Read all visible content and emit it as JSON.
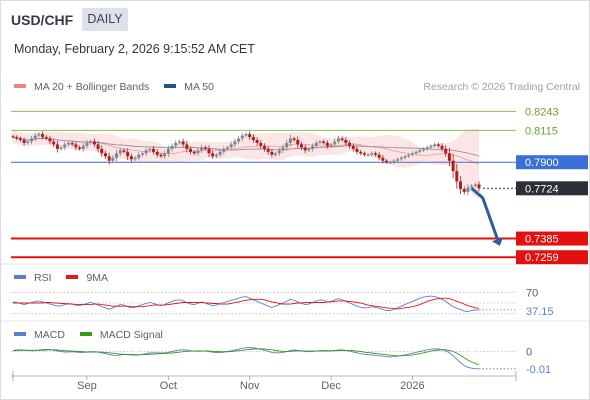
{
  "header": {
    "symbol": "USD/CHF",
    "timeframe": "DAILY",
    "datetime": "Monday, February 2, 2026 9:15:52 AM CET",
    "credit": "Research © 2026 Trading Central"
  },
  "legends": {
    "price": [
      {
        "label": "MA 20 + Bollinger Bands",
        "color": "#f4817c"
      },
      {
        "label": "MA 50",
        "color": "#2c4f86"
      }
    ],
    "rsi": [
      {
        "label": "RSI",
        "color": "#5b7fcf"
      },
      {
        "label": "9MA",
        "color": "#e01818"
      }
    ],
    "macd": [
      {
        "label": "MACD",
        "color": "#5b7fcf"
      },
      {
        "label": "MACD Signal",
        "color": "#3a9a1a"
      }
    ]
  },
  "colors": {
    "up_candle": "#7e8491",
    "down_candle": "#b01c1c",
    "resistance_green": "#8cc04a",
    "pivot_blue": "#3a6fd8",
    "support_red": "#e31010",
    "arrow_blue": "#2e5d9e",
    "bb_fill": "#fbdcdc",
    "current_label_bg": "#2b2f36"
  },
  "chart_data": [
    {
      "type": "candlestick",
      "title": "USD/CHF",
      "ylim": [
        0.722,
        0.834
      ],
      "x_ticks": [
        "Sep",
        "Oct",
        "Nov",
        "Dec",
        "2026"
      ],
      "num_bars": 127,
      "close": [
        0.807,
        0.806,
        0.805,
        0.803,
        0.804,
        0.806,
        0.808,
        0.809,
        0.807,
        0.806,
        0.804,
        0.802,
        0.799,
        0.8,
        0.802,
        0.803,
        0.802,
        0.8,
        0.799,
        0.801,
        0.803,
        0.804,
        0.802,
        0.799,
        0.796,
        0.794,
        0.791,
        0.793,
        0.796,
        0.798,
        0.797,
        0.794,
        0.792,
        0.793,
        0.795,
        0.796,
        0.798,
        0.799,
        0.797,
        0.795,
        0.794,
        0.796,
        0.799,
        0.801,
        0.803,
        0.804,
        0.802,
        0.799,
        0.797,
        0.796,
        0.798,
        0.8,
        0.799,
        0.796,
        0.794,
        0.795,
        0.797,
        0.799,
        0.8,
        0.802,
        0.804,
        0.806,
        0.808,
        0.809,
        0.807,
        0.805,
        0.803,
        0.801,
        0.799,
        0.797,
        0.795,
        0.796,
        0.798,
        0.8,
        0.803,
        0.806,
        0.805,
        0.802,
        0.8,
        0.798,
        0.799,
        0.801,
        0.803,
        0.804,
        0.803,
        0.801,
        0.802,
        0.804,
        0.806,
        0.805,
        0.803,
        0.801,
        0.799,
        0.797,
        0.796,
        0.795,
        0.795,
        0.796,
        0.795,
        0.793,
        0.791,
        0.79,
        0.79,
        0.791,
        0.792,
        0.793,
        0.794,
        0.795,
        0.796,
        0.797,
        0.798,
        0.799,
        0.8,
        0.801,
        0.802,
        0.801,
        0.799,
        0.796,
        0.791,
        0.784,
        0.777,
        0.772,
        0.77,
        0.773,
        0.774,
        0.775,
        0.7724
      ],
      "levels": [
        {
          "value": 0.8243,
          "label": "0.8243",
          "role": "resistance"
        },
        {
          "value": 0.8115,
          "label": "0.8115",
          "role": "resistance"
        },
        {
          "value": 0.79,
          "label": "0.7900",
          "role": "pivot"
        },
        {
          "value": 0.7724,
          "label": "0.7724",
          "role": "last"
        },
        {
          "value": 0.7385,
          "label": "0.7385",
          "role": "support"
        },
        {
          "value": 0.7259,
          "label": "0.7259",
          "role": "support"
        }
      ],
      "forecast_arrow": [
        [
          124,
          0.7724
        ],
        [
          127,
          0.766
        ],
        [
          131,
          0.738
        ]
      ]
    },
    {
      "type": "line",
      "title": "RSI",
      "ylim": [
        20,
        80
      ],
      "ticks": [
        {
          "value": 70,
          "label": "70"
        }
      ],
      "last_value_label": "37.15",
      "series": [
        {
          "name": "RSI",
          "values": [
            52,
            51,
            49,
            47,
            49,
            51,
            53,
            54,
            52,
            50,
            48,
            46,
            44,
            45,
            47,
            49,
            48,
            46,
            45,
            47,
            49,
            51,
            49,
            46,
            43,
            41,
            38,
            41,
            44,
            47,
            46,
            43,
            41,
            42,
            45,
            47,
            49,
            51,
            49,
            47,
            45,
            47,
            50,
            53,
            55,
            56,
            54,
            51,
            48,
            47,
            49,
            52,
            50,
            47,
            45,
            46,
            49,
            51,
            53,
            55,
            57,
            59,
            61,
            62,
            59,
            56,
            53,
            50,
            47,
            44,
            42,
            44,
            47,
            50,
            53,
            57,
            55,
            52,
            49,
            47,
            48,
            51,
            54,
            56,
            55,
            52,
            53,
            56,
            58,
            56,
            53,
            50,
            47,
            44,
            42,
            41,
            41,
            43,
            42,
            40,
            38,
            36,
            36,
            38,
            41,
            44,
            47,
            50,
            53,
            56,
            59,
            61,
            62,
            63,
            62,
            60,
            57,
            53,
            48,
            43,
            40,
            38,
            35,
            34,
            36,
            37,
            37.15
          ]
        },
        {
          "name": "9MA",
          "values": [
            50,
            50,
            50,
            50,
            50,
            50,
            50,
            50,
            50,
            51,
            51,
            50,
            50,
            49,
            49,
            48,
            48,
            47,
            47,
            47,
            47,
            47,
            48,
            48,
            47,
            46,
            45,
            44,
            44,
            44,
            44,
            44,
            43,
            43,
            43,
            43,
            44,
            45,
            46,
            46,
            46,
            46,
            47,
            48,
            49,
            50,
            51,
            51,
            51,
            51,
            51,
            51,
            50,
            50,
            49,
            49,
            48,
            48,
            48,
            49,
            51,
            52,
            54,
            55,
            56,
            57,
            57,
            57,
            56,
            54,
            52,
            51,
            49,
            48,
            48,
            48,
            49,
            50,
            50,
            51,
            51,
            51,
            51,
            51,
            51,
            52,
            52,
            53,
            54,
            54,
            54,
            53,
            52,
            51,
            50,
            48,
            46,
            45,
            44,
            43,
            42,
            41,
            40,
            40,
            39,
            40,
            41,
            42,
            43,
            45,
            47,
            50,
            53,
            55,
            57,
            58,
            59,
            59,
            58,
            56,
            53,
            51,
            48,
            45,
            43,
            41,
            40
          ]
        }
      ]
    },
    {
      "type": "line",
      "title": "MACD",
      "ylim": [
        -0.011,
        0.004
      ],
      "ticks": [
        {
          "value": 0,
          "label": "0"
        }
      ],
      "last_value_label": "-0.01",
      "series": [
        {
          "name": "MACD",
          "values": [
            0.0005,
            0.0007,
            0.0008,
            0.0007,
            0.0005,
            0.0004,
            0.0005,
            0.0007,
            0.0009,
            0.001,
            0.0009,
            0.0006,
            0.0003,
            0.0,
            -0.0002,
            -0.0002,
            -0.0001,
            -0.0002,
            -0.0004,
            -0.0004,
            -0.0003,
            -0.0001,
            -0.0001,
            -0.0003,
            -0.0006,
            -0.001,
            -0.0014,
            -0.0017,
            -0.0018,
            -0.0016,
            -0.0014,
            -0.0014,
            -0.0016,
            -0.0017,
            -0.0016,
            -0.0013,
            -0.001,
            -0.0007,
            -0.0006,
            -0.0006,
            -0.0007,
            -0.0006,
            -0.0004,
            0.0,
            0.0004,
            0.0007,
            0.0008,
            0.0007,
            0.0004,
            0.0002,
            0.0001,
            0.0002,
            0.0002,
            0.0,
            -0.0003,
            -0.0005,
            -0.0005,
            -0.0003,
            0.0,
            0.0003,
            0.0007,
            0.0011,
            0.0015,
            0.0018,
            0.0019,
            0.0017,
            0.0014,
            0.001,
            0.0006,
            0.0001,
            -0.0004,
            -0.0006,
            -0.0006,
            -0.0004,
            0.0,
            0.0005,
            0.0007,
            0.0006,
            0.0003,
            0.0,
            -0.0001,
            0.0,
            0.0002,
            0.0004,
            0.0005,
            0.0004,
            0.0004,
            0.0005,
            0.0007,
            0.0007,
            0.0005,
            0.0002,
            -0.0002,
            -0.0006,
            -0.001,
            -0.0013,
            -0.0015,
            -0.0016,
            -0.0018,
            -0.002,
            -0.0022,
            -0.0024,
            -0.0025,
            -0.0024,
            -0.0022,
            -0.0019,
            -0.0016,
            -0.0012,
            -0.0008,
            -0.0004,
            0.0,
            0.0004,
            0.0008,
            0.0011,
            0.0013,
            0.0012,
            0.0009,
            0.0003,
            -0.0006,
            -0.002,
            -0.0036,
            -0.0052,
            -0.0066,
            -0.0074,
            -0.0078,
            -0.008,
            -0.0081
          ]
        },
        {
          "name": "MACD Signal",
          "values": [
            0.0004,
            0.0005,
            0.0006,
            0.0006,
            0.0006,
            0.0006,
            0.0006,
            0.0006,
            0.0006,
            0.0007,
            0.0008,
            0.0008,
            0.0007,
            0.0006,
            0.0004,
            0.0003,
            0.0002,
            0.0001,
            0.0,
            -0.0001,
            -0.0002,
            -0.0002,
            -0.0002,
            -0.0002,
            -0.0003,
            -0.0004,
            -0.0006,
            -0.0008,
            -0.001,
            -0.0012,
            -0.0013,
            -0.0014,
            -0.0014,
            -0.0015,
            -0.0015,
            -0.0015,
            -0.0014,
            -0.0013,
            -0.0012,
            -0.0011,
            -0.001,
            -0.0009,
            -0.0008,
            -0.0007,
            -0.0005,
            -0.0003,
            -0.0001,
            0.0001,
            0.0002,
            0.0003,
            0.0003,
            0.0003,
            0.0003,
            0.0002,
            0.0001,
            0.0,
            -0.0001,
            -0.0001,
            -0.0001,
            0.0,
            0.0002,
            0.0004,
            0.0006,
            0.0008,
            0.001,
            0.0012,
            0.0013,
            0.0013,
            0.0012,
            0.001,
            0.0008,
            0.0005,
            0.0003,
            0.0001,
            0.0,
            0.0001,
            0.0002,
            0.0003,
            0.0003,
            0.0003,
            0.0002,
            0.0002,
            0.0002,
            0.0002,
            0.0003,
            0.0003,
            0.0003,
            0.0004,
            0.0005,
            0.0005,
            0.0005,
            0.0005,
            0.0004,
            0.0002,
            0.0,
            -0.0003,
            -0.0005,
            -0.0007,
            -0.0009,
            -0.0011,
            -0.0013,
            -0.0015,
            -0.0017,
            -0.0019,
            -0.002,
            -0.002,
            -0.0019,
            -0.0018,
            -0.0016,
            -0.0013,
            -0.001,
            -0.0006,
            -0.0002,
            0.0002,
            0.0005,
            0.0007,
            0.0008,
            0.0008,
            0.0005,
            0.0,
            -0.0008,
            -0.0018,
            -0.0029,
            -0.004,
            -0.0049,
            -0.0056,
            -0.0062
          ]
        }
      ]
    }
  ]
}
